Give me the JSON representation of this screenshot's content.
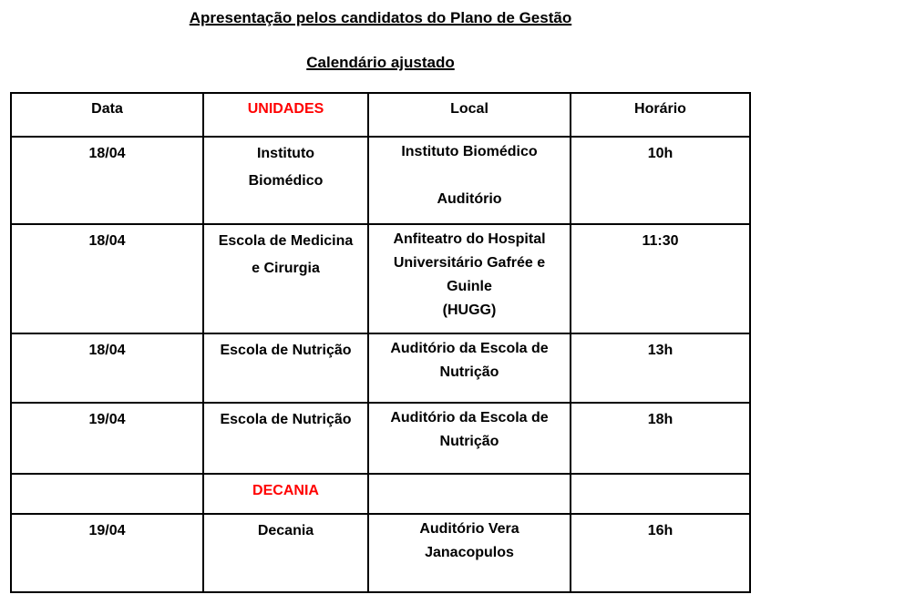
{
  "page": {
    "title": "Apresentação pelos candidatos do Plano de Gestão",
    "subtitle": "Calendário ajustado"
  },
  "colors": {
    "accent_red": "#FF0000",
    "text": "#000000",
    "border": "#000000",
    "background": "#FFFFFF"
  },
  "table": {
    "headers": [
      "Data",
      "UNIDADES",
      "Local",
      "Horário"
    ],
    "rows": [
      {
        "data": "18/04",
        "unidade": "Instituto\nBiomédico",
        "local": "Instituto Biomédico\n\nAuditório",
        "horario": "10h"
      },
      {
        "data": "18/04",
        "unidade": "Escola de Medicina\ne Cirurgia",
        "local": "Anfiteatro do Hospital\nUniversitário Gafrée e\nGuinle\n(HUGG)",
        "horario": "11:30"
      },
      {
        "data": "18/04",
        "unidade": "Escola de Nutrição",
        "local": "Auditório da Escola de\nNutrição",
        "horario": "13h"
      },
      {
        "data": "19/04",
        "unidade": "Escola de Nutrição",
        "local": "Auditório da Escola de\nNutrição",
        "horario": "18h"
      },
      {
        "data": "",
        "unidade": "DECANIA",
        "local": "",
        "horario": ""
      },
      {
        "data": "19/04",
        "unidade": "Decania",
        "local": "Auditório Vera\nJanacopulos",
        "horario": "16h"
      }
    ]
  }
}
